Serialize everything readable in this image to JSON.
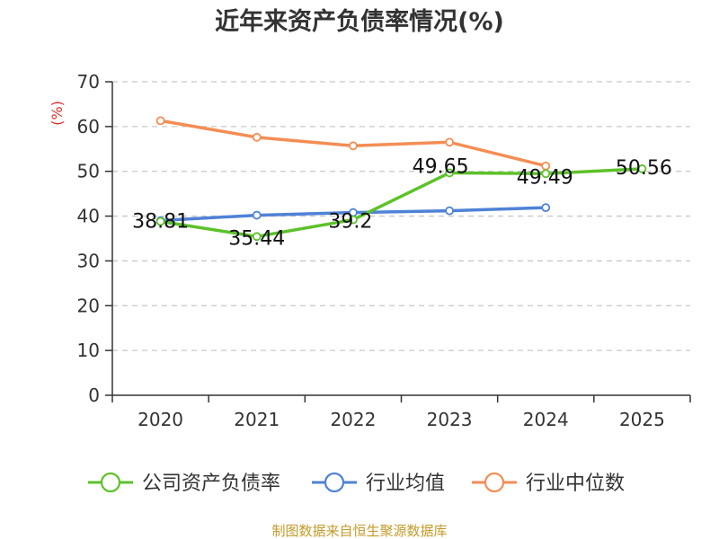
{
  "chart_data": {
    "type": "line",
    "title": "近年来资产负债率情况(%)",
    "unit_label": "(%)",
    "x": [
      "2020",
      "2021",
      "2022",
      "2023",
      "2024",
      "2025"
    ],
    "yticks": [
      "0",
      "10",
      "20",
      "30",
      "40",
      "50",
      "60",
      "70"
    ],
    "ylim": [
      0,
      70
    ],
    "grid": true,
    "legend_position": "bottom",
    "series": [
      {
        "name": "公司资产负债率",
        "color": "#5cc22a",
        "values": [
          38.81,
          35.44,
          39.2,
          49.65,
          49.49,
          50.56
        ],
        "labels": [
          "38.81",
          "35.44",
          "39.2",
          "49.65",
          "49.49",
          "50.56"
        ]
      },
      {
        "name": "行业均值",
        "color": "#4f82d6",
        "values": [
          39.0,
          40.2,
          40.8,
          41.2,
          41.9,
          null
        ]
      },
      {
        "name": "行业中位数",
        "color": "#f48d54",
        "values": [
          61.3,
          57.6,
          55.7,
          56.5,
          51.2,
          null
        ]
      }
    ],
    "source": "制图数据来自恒生聚源数据库"
  }
}
